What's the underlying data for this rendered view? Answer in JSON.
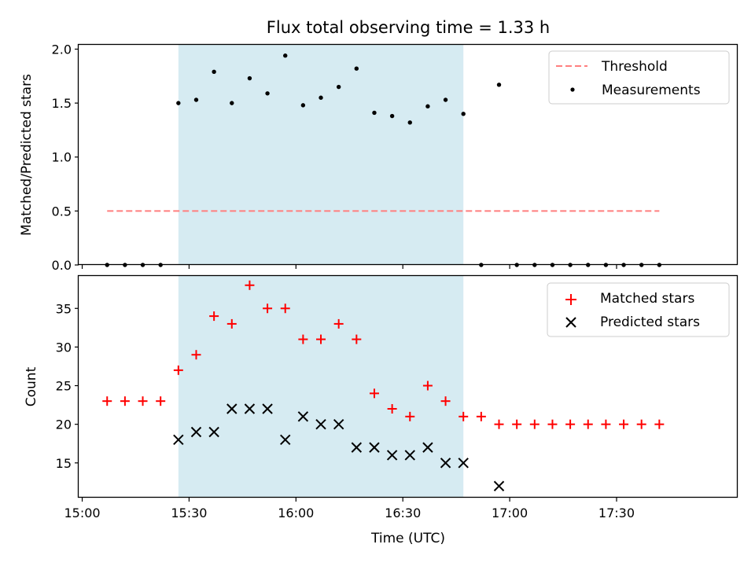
{
  "chart_data": {
    "title": "Flux total observing time = 1.33 h",
    "xlabel": "Time (UTC)",
    "x_ticks": [
      "15:00",
      "15:30",
      "16:00",
      "16:30",
      "17:00",
      "17:30"
    ],
    "x_tick_minutes": [
      900,
      930,
      960,
      990,
      1020,
      1050
    ],
    "xlim_minutes": [
      899,
      1084
    ],
    "x_times": [
      "15:07",
      "15:12",
      "15:17",
      "15:22",
      "15:27",
      "15:32",
      "15:37",
      "15:42",
      "15:47",
      "15:52",
      "15:57",
      "16:02",
      "16:07",
      "16:12",
      "16:17",
      "16:22",
      "16:27",
      "16:32",
      "16:37",
      "16:42",
      "16:47",
      "16:52",
      "16:57",
      "17:02",
      "17:07",
      "17:12",
      "17:17",
      "17:22",
      "17:27",
      "17:32",
      "17:37",
      "17:42"
    ],
    "x_minutes": [
      907,
      912,
      917,
      922,
      927,
      932,
      937,
      942,
      947,
      952,
      957,
      962,
      967,
      972,
      977,
      982,
      987,
      992,
      997,
      1002,
      1007,
      1012,
      1017,
      1022,
      1027,
      1032,
      1037,
      1042,
      1047,
      1052,
      1057,
      1062
    ],
    "highlight_span": [
      "15:27",
      "16:47"
    ],
    "highlight_span_minutes": [
      927,
      1007
    ],
    "highlight_color": "#add8e6",
    "panels": [
      {
        "type": "scatter",
        "ylabel": "Matched/Predicted stars",
        "ylim": [
          0,
          2.04
        ],
        "y_ticks": [
          "0.0",
          "0.5",
          "1.0",
          "1.5",
          "2.0"
        ],
        "y_tick_values": [
          0,
          0.5,
          1.0,
          1.5,
          2.0
        ],
        "legend_position": "top-right",
        "threshold": {
          "name": "Threshold",
          "value": 0.5,
          "x_range_minutes": [
            907,
            1062
          ],
          "color": "#ff7f7f"
        },
        "series": [
          {
            "name": "Measurements",
            "marker": "dot",
            "color": "#000000",
            "values": [
              0,
              0,
              0,
              0,
              1.5,
              1.53,
              1.79,
              1.5,
              1.73,
              1.59,
              1.94,
              1.48,
              1.55,
              1.65,
              1.82,
              1.41,
              1.38,
              1.32,
              1.47,
              1.53,
              1.4,
              0,
              1.67,
              0,
              0,
              0,
              0,
              0,
              0,
              0,
              0,
              0
            ]
          }
        ]
      },
      {
        "type": "scatter",
        "ylabel": "Count",
        "ylim": [
          10.5,
          39.2
        ],
        "y_ticks": [
          "15",
          "20",
          "25",
          "30",
          "35"
        ],
        "y_tick_values": [
          15,
          20,
          25,
          30,
          35
        ],
        "legend_position": "top-right",
        "series": [
          {
            "name": "Matched stars",
            "marker": "plus",
            "color": "#ff0000",
            "values": [
              23,
              23,
              23,
              23,
              27,
              29,
              34,
              33,
              38,
              35,
              35,
              31,
              31,
              33,
              31,
              24,
              22,
              21,
              25,
              23,
              21,
              21,
              20,
              20,
              20,
              20,
              20,
              20,
              20,
              20,
              20,
              20
            ]
          },
          {
            "name": "Predicted stars",
            "marker": "x",
            "color": "#000000",
            "values": [
              null,
              null,
              null,
              null,
              18,
              19,
              19,
              22,
              22,
              22,
              18,
              21,
              20,
              20,
              17,
              17,
              16,
              16,
              17,
              15,
              15,
              null,
              12,
              null,
              null,
              null,
              null,
              null,
              null,
              null,
              null,
              null
            ]
          }
        ]
      }
    ]
  }
}
